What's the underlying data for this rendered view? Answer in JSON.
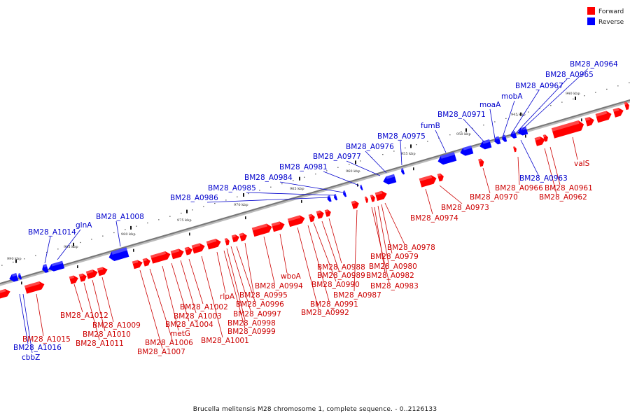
{
  "legend": {
    "items": [
      {
        "label": "Forward",
        "color": "#ff0000"
      },
      {
        "label": "Reverse",
        "color": "#0000ff"
      }
    ]
  },
  "footer": "Brucella melitensis M28 chromosome 1, complete sequence. - 0..2126133",
  "colors": {
    "forward": "#ff0000",
    "reverse": "#0000ff",
    "forward_label": "#cc0000",
    "reverse_label": "#0000cc",
    "axis": "#777777"
  },
  "ticks": [
    "990 kbp",
    "985 kbp",
    "980 kbp",
    "975 kbp",
    "970 kbp",
    "965 kbp",
    "960 kbp",
    "955 kbp",
    "950 kbp",
    "945 kbp",
    "940 kbp"
  ],
  "labels": {
    "reverse": [
      "BM28_A0964",
      "BM28_A0965",
      "BM28_A0967",
      "mobA",
      "moaA",
      "BM28_A0971",
      "fumB",
      "BM28_A0975",
      "BM28_A0976",
      "BM28_A0977",
      "BM28_A0981",
      "BM28_A0984",
      "BM28_A0985",
      "BM28_A0986",
      "BM28_A1008",
      "glnA",
      "BM28_A1014",
      "BM28_A0963",
      "BM28_A1016",
      "cbbZ"
    ],
    "forward": [
      "valS",
      "BM28_A0961",
      "BM28_A0962",
      "BM28_A0966",
      "BM28_A0970",
      "BM28_A0973",
      "BM28_A0974",
      "BM28_A0978",
      "BM28_A0979",
      "BM28_A0980",
      "BM28_A0982",
      "BM28_A0983",
      "BM28_A0987",
      "BM28_A0988",
      "BM28_A0989",
      "BM28_A0990",
      "BM28_A0991",
      "BM28_A0992",
      "wboA",
      "BM28_A0994",
      "BM28_A0995",
      "rlpA",
      "BM28_A0996",
      "BM28_A0997",
      "BM28_A0998",
      "BM28_A0999",
      "BM28_A1001",
      "BM28_A1002",
      "BM28_A1003",
      "BM28_A1004",
      "metG",
      "BM28_A1006",
      "BM28_A1007",
      "BM28_A1009",
      "BM28_A1010",
      "BM28_A1011",
      "BM28_A1012",
      "BM28_A1015"
    ]
  }
}
